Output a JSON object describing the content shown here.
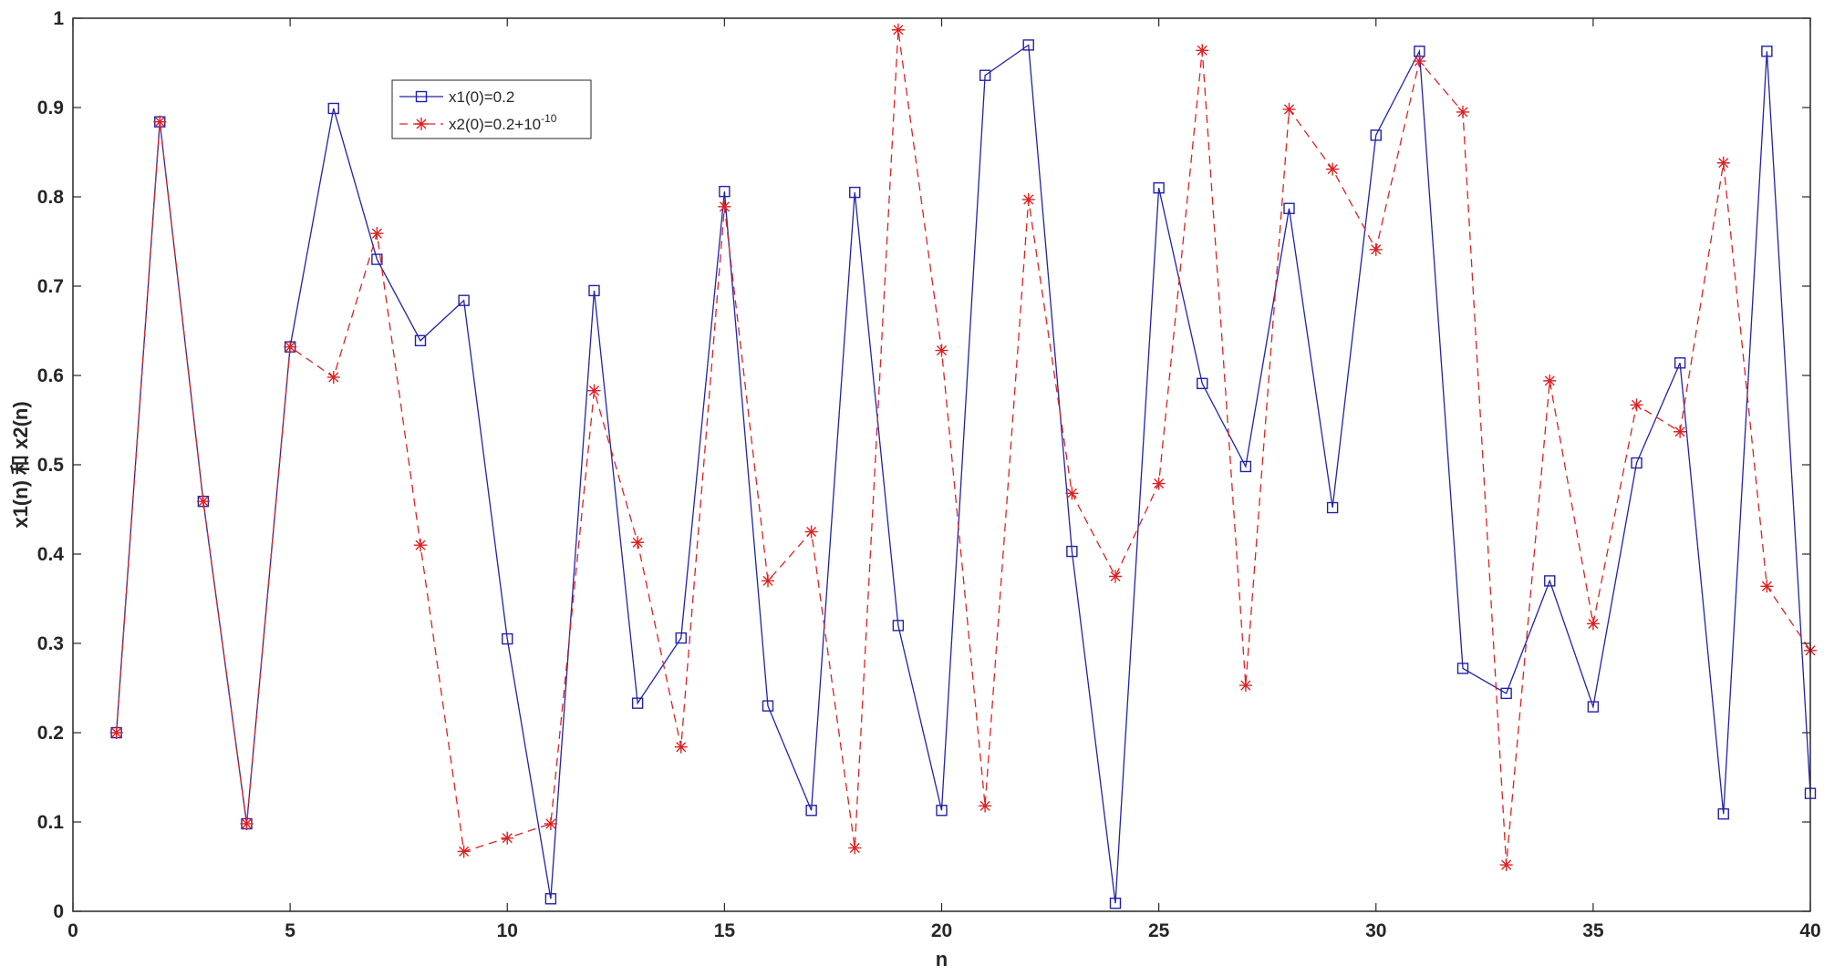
{
  "chart_data": {
    "type": "line",
    "xlabel": "n",
    "ylabel": "x1(n) 和 x2(n)",
    "xlim": [
      0,
      40
    ],
    "ylim": [
      0,
      1
    ],
    "xticks": [
      0,
      5,
      10,
      15,
      20,
      25,
      30,
      35,
      40
    ],
    "yticks": [
      0,
      0.1,
      0.2,
      0.3,
      0.4,
      0.5,
      0.6,
      0.7,
      0.8,
      0.9,
      1
    ],
    "xtick_labels": [
      "0",
      "5",
      "10",
      "15",
      "20",
      "25",
      "30",
      "35",
      "40"
    ],
    "ytick_labels": [
      "0",
      "0.1",
      "0.2",
      "0.3",
      "0.4",
      "0.5",
      "0.6",
      "0.7",
      "0.8",
      "0.9",
      "1"
    ],
    "grid": false,
    "legend_position": "top-left",
    "x": [
      1,
      2,
      3,
      4,
      5,
      6,
      7,
      8,
      9,
      10,
      11,
      12,
      13,
      14,
      15,
      16,
      17,
      18,
      19,
      20,
      21,
      22,
      23,
      24,
      25,
      26,
      27,
      28,
      29,
      30,
      31,
      32,
      33,
      34,
      35,
      36,
      37,
      38,
      39,
      40
    ],
    "series": [
      {
        "name": "x1(0)=0.2",
        "color": "#2222aa",
        "line_style": "solid",
        "marker": "square",
        "values": [
          0.2,
          0.884,
          0.459,
          0.098,
          0.632,
          0.899,
          0.73,
          0.639,
          0.684,
          0.305,
          0.014,
          0.695,
          0.233,
          0.306,
          0.806,
          0.23,
          0.113,
          0.805,
          0.32,
          0.113,
          0.936,
          0.97,
          0.403,
          0.009,
          0.81,
          0.591,
          0.498,
          0.787,
          0.452,
          0.869,
          0.963,
          0.272,
          0.244,
          0.37,
          0.229,
          0.502,
          0.614,
          0.109,
          0.963,
          0.132
        ]
      },
      {
        "name": "x2(0)=0.2+10",
        "name_superscript": "-10",
        "color": "#dd2222",
        "line_style": "dashed",
        "marker": "asterisk",
        "values": [
          0.2,
          0.884,
          0.459,
          0.098,
          0.632,
          0.598,
          0.759,
          0.41,
          0.067,
          0.082,
          0.098,
          0.583,
          0.413,
          0.184,
          0.789,
          0.37,
          0.425,
          0.071,
          0.987,
          0.628,
          0.118,
          0.797,
          0.468,
          0.375,
          0.479,
          0.964,
          0.253,
          0.898,
          0.831,
          0.741,
          0.952,
          0.895,
          0.052,
          0.594,
          0.322,
          0.567,
          0.537,
          0.838,
          0.364,
          0.292
        ]
      }
    ]
  }
}
